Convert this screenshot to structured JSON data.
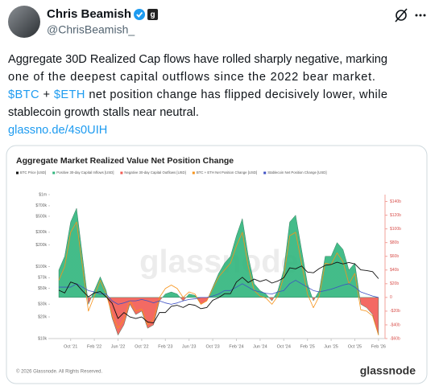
{
  "tweet": {
    "author": "Chris Beamish",
    "badge": "g",
    "handle": "@ChrisBeamish_",
    "text": [
      "Aggregate 30D Realized Cap flows have rolled sharply negative, marking",
      "one of the deepest capital outflows since the 2022 bear market.",
      [
        "$BTC",
        " + ",
        "$ETH",
        " net position change has flipped decisively lower, while"
      ],
      "stablecoin growth stalls near neutral."
    ],
    "link": "glassno.de/4s0UIH"
  },
  "chart_data": {
    "type": "line",
    "title": "Aggregate Market Realized Value Net Position Change",
    "watermark": "glassnode",
    "source": "© 2026 Glassnode. All Rights Reserved.",
    "logo": "glassnode",
    "x": [
      "2021-08",
      "2021-09",
      "2021-10",
      "2021-11",
      "2021-12",
      "2022-01",
      "2022-02",
      "2022-03",
      "2022-04",
      "2022-05",
      "2022-06",
      "2022-07",
      "2022-08",
      "2022-09",
      "2022-10",
      "2022-11",
      "2022-12",
      "2023-01",
      "2023-02",
      "2023-03",
      "2023-04",
      "2023-05",
      "2023-06",
      "2023-07",
      "2023-08",
      "2023-09",
      "2023-10",
      "2023-11",
      "2023-12",
      "2024-01",
      "2024-02",
      "2024-03",
      "2024-04",
      "2024-05",
      "2024-06",
      "2024-07",
      "2024-08",
      "2024-09",
      "2024-10",
      "2024-11",
      "2024-12",
      "2025-01",
      "2025-02",
      "2025-03",
      "2025-04",
      "2025-05",
      "2025-06",
      "2025-07",
      "2025-08",
      "2025-09",
      "2025-10",
      "2025-11",
      "2025-12",
      "2026-01",
      "2026-02"
    ],
    "xticks": [
      {
        "value": "2021-10",
        "label": "Oct '21"
      },
      {
        "value": "2022-02",
        "label": "Feb '22"
      },
      {
        "value": "2022-06",
        "label": "Jun '22"
      },
      {
        "value": "2022-10",
        "label": "Oct '22"
      },
      {
        "value": "2023-02",
        "label": "Feb '23"
      },
      {
        "value": "2023-06",
        "label": "Jun '23"
      },
      {
        "value": "2023-10",
        "label": "Oct '23"
      },
      {
        "value": "2024-02",
        "label": "Feb '24"
      },
      {
        "value": "2024-06",
        "label": "Jun '24"
      },
      {
        "value": "2024-10",
        "label": "Oct '24"
      },
      {
        "value": "2025-02",
        "label": "Feb '25"
      },
      {
        "value": "2025-06",
        "label": "Jun '25"
      },
      {
        "value": "2025-10",
        "label": "Oct '25"
      },
      {
        "value": "2026-02",
        "label": "Feb '26"
      }
    ],
    "ylog": true,
    "ylim": [
      10000,
      1000000
    ],
    "yticks": [
      {
        "value": 1000000,
        "label": "$1m"
      },
      {
        "value": 700000,
        "label": "$700k"
      },
      {
        "value": 500000,
        "label": "$500k"
      },
      {
        "value": 300000,
        "label": "$300k"
      },
      {
        "value": 200000,
        "label": "$200k"
      },
      {
        "value": 100000,
        "label": "$100k"
      },
      {
        "value": 70000,
        "label": "$70k"
      },
      {
        "value": 50000,
        "label": "$50k"
      },
      {
        "value": 30000,
        "label": "$30k"
      },
      {
        "value": 20000,
        "label": "$20k"
      },
      {
        "value": 10000,
        "label": "$10k"
      }
    ],
    "y2lim": [
      -60,
      150
    ],
    "y2ticks": [
      {
        "value": 140,
        "label": "$140b"
      },
      {
        "value": 120,
        "label": "$120b"
      },
      {
        "value": 100,
        "label": "$100b"
      },
      {
        "value": 80,
        "label": "$80b"
      },
      {
        "value": 60,
        "label": "$60b"
      },
      {
        "value": 40,
        "label": "$40b"
      },
      {
        "value": 20,
        "label": "$20b"
      },
      0,
      {
        "value": -20,
        "label": "-$20b"
      },
      {
        "value": -40,
        "label": "-$40b"
      },
      {
        "value": -60,
        "label": "-$60b"
      }
    ],
    "grid": false,
    "legend": "top-left",
    "series": [
      {
        "name": "BTC Price [USD]",
        "color": "#111111",
        "axis": "y",
        "values": [
          47000,
          43000,
          61000,
          57000,
          46000,
          38000,
          43000,
          45000,
          38000,
          31000,
          19000,
          23000,
          20000,
          19000,
          20000,
          17000,
          16500,
          23000,
          23000,
          28000,
          29000,
          27000,
          30000,
          29000,
          26000,
          27000,
          34000,
          37000,
          42000,
          42000,
          61000,
          71000,
          60000,
          67000,
          62000,
          66000,
          59000,
          63000,
          70000,
          96000,
          93000,
          102000,
          84000,
          82000,
          94000,
          104000,
          107000,
          115000,
          109000,
          114000,
          109000,
          90000,
          88000,
          85000,
          68000
        ]
      },
      {
        "names": [
          "Positive 30-day Capital Inflows [USD]",
          "Negative 30-day Capital Outflows [USD]"
        ],
        "colors": [
          "#2fb57c",
          "#f25a52"
        ],
        "axis": "y2",
        "area": true,
        "values": [
          40,
          60,
          110,
          130,
          60,
          -10,
          10,
          30,
          10,
          -30,
          -55,
          -40,
          -10,
          -25,
          -20,
          -45,
          -40,
          -5,
          5,
          8,
          5,
          -5,
          5,
          3,
          -10,
          -5,
          15,
          35,
          50,
          60,
          90,
          115,
          60,
          20,
          10,
          5,
          -5,
          10,
          40,
          110,
          120,
          70,
          20,
          -5,
          10,
          60,
          60,
          80,
          70,
          40,
          50,
          -10,
          -15,
          -25,
          -55
        ]
      },
      {
        "name": "BTC + ETH Net Position Change [USD]",
        "color": "#f7931a",
        "axis": "y2",
        "values": [
          25,
          45,
          95,
          110,
          45,
          -20,
          2,
          25,
          5,
          -25,
          -45,
          -32,
          -5,
          -20,
          -17,
          -40,
          -32,
          0,
          13,
          18,
          13,
          0,
          8,
          5,
          -10,
          -5,
          13,
          30,
          40,
          50,
          75,
          95,
          45,
          10,
          2,
          -1,
          -10,
          2,
          30,
          90,
          95,
          50,
          5,
          -15,
          2,
          50,
          48,
          65,
          52,
          20,
          35,
          -18,
          -20,
          -27,
          -55
        ]
      },
      {
        "name": "Stablecoin Net Position Change [USD]",
        "color": "#3d4fc4",
        "axis": "y2",
        "values": [
          15,
          15,
          15,
          20,
          15,
          10,
          8,
          5,
          5,
          -5,
          -10,
          -8,
          -5,
          -5,
          -3,
          -5,
          -8,
          -5,
          -8,
          -10,
          -8,
          -5,
          -3,
          -2,
          0,
          0,
          2,
          5,
          10,
          10,
          15,
          20,
          15,
          10,
          8,
          6,
          5,
          8,
          10,
          20,
          25,
          20,
          15,
          10,
          8,
          10,
          12,
          15,
          18,
          20,
          15,
          8,
          5,
          2,
          0
        ]
      }
    ]
  }
}
